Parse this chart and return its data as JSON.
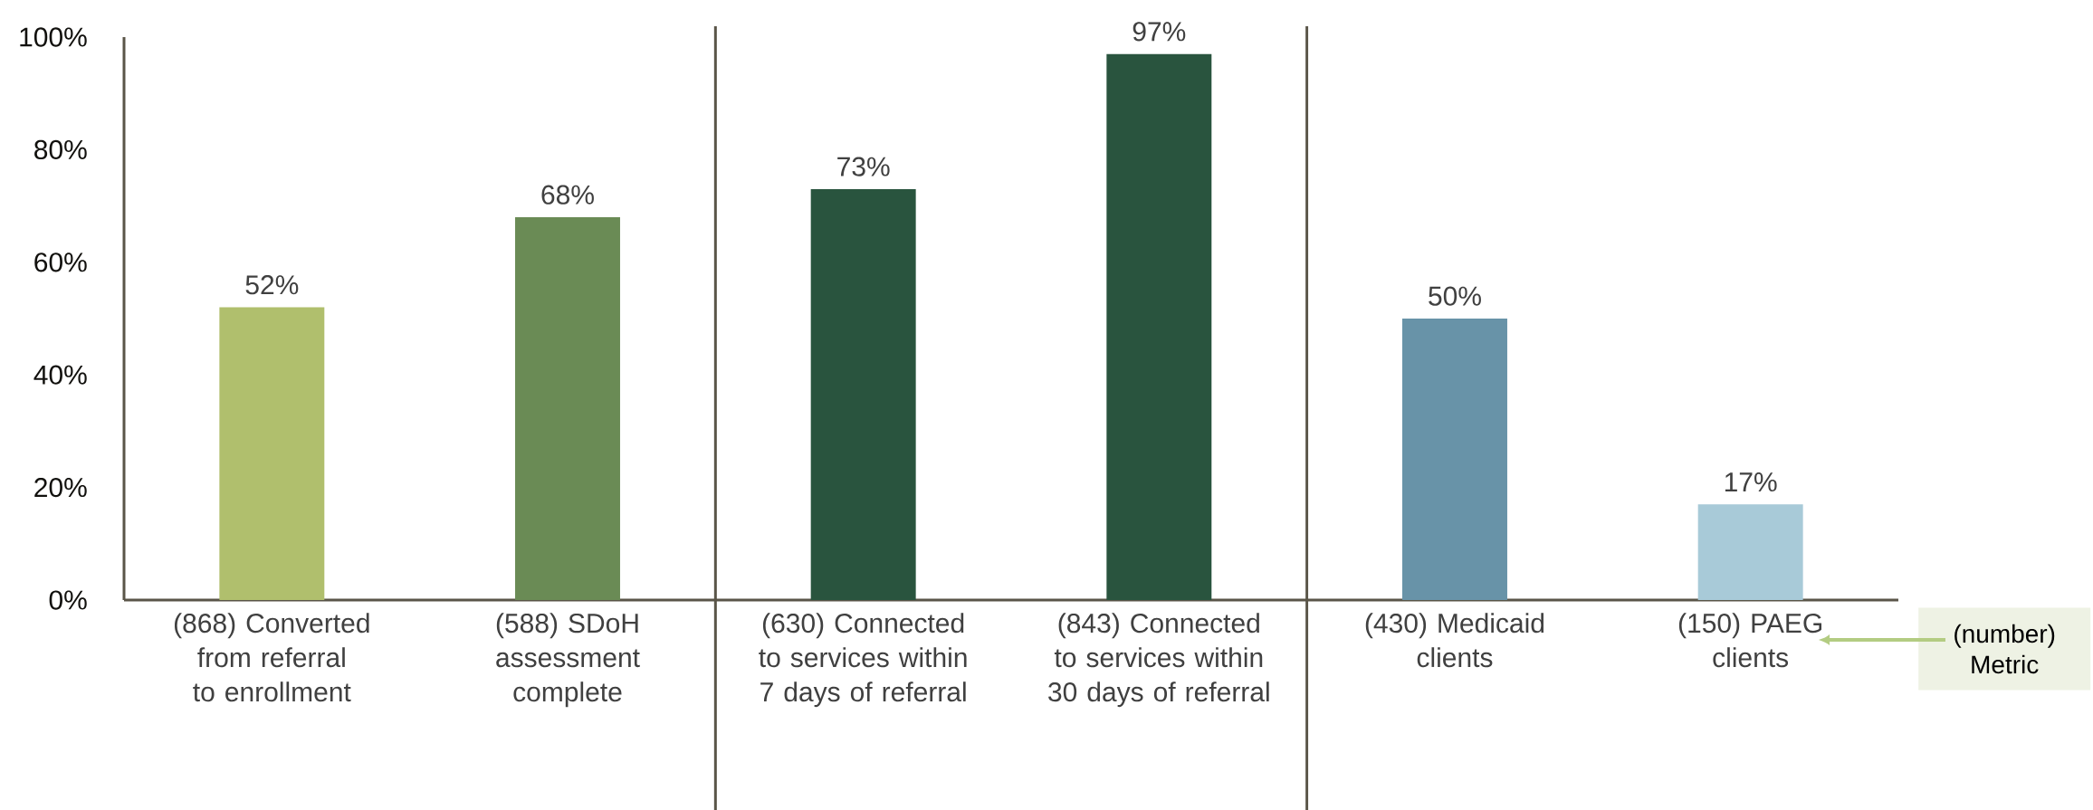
{
  "chart_data": {
    "type": "bar",
    "categories": [
      "(868) Converted from referral to enrollment",
      "(588) SDoH assessment complete",
      "(630) Connected to services within 7 days of referral",
      "(843) Connected to services within 30 days of referral",
      "(430) Medicaid clients",
      "(150) PAEG clients"
    ],
    "values": [
      52,
      68,
      73,
      97,
      50,
      17
    ],
    "colors": [
      "#b0bf6d",
      "#6a8b55",
      "#29543e",
      "#29543e",
      "#6893a8",
      "#a8cad8"
    ],
    "value_labels": [
      "52%",
      "68%",
      "73%",
      "97%",
      "50%",
      "17%"
    ],
    "ylim": [
      0,
      100
    ],
    "yticks": [
      {
        "value": 0,
        "label": "0%"
      },
      {
        "value": 20,
        "label": "20%"
      },
      {
        "value": 40,
        "label": "40%"
      },
      {
        "value": 60,
        "label": "60%"
      },
      {
        "value": 80,
        "label": "80%"
      },
      {
        "value": 100,
        "label": "100%"
      }
    ],
    "annotations": [
      "(number) Metric"
    ]
  }
}
